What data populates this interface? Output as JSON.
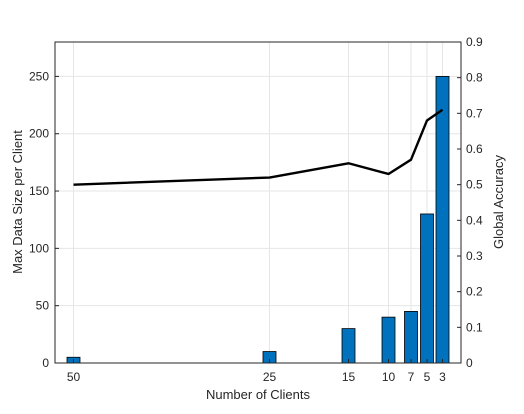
{
  "chart_data": {
    "type": "bar",
    "title": "",
    "xlabel": "Number of Clients",
    "ylabel_left": "Max Data Size per Client",
    "ylabel_right": "Global Accuracy",
    "x_tick_labels": [
      "50",
      "25",
      "15",
      "10",
      "7",
      "5",
      "3"
    ],
    "ylim_left": [
      0,
      280
    ],
    "yticks_left": [
      0,
      50,
      100,
      150,
      200,
      250
    ],
    "ylim_right": [
      0,
      0.9
    ],
    "yticks_right": [
      "0",
      "0.1",
      "0.2",
      "0.3",
      "0.4",
      "0.5",
      "0.6",
      "0.7",
      "0.8",
      "0.9"
    ],
    "grid": true,
    "series": [
      {
        "kind": "bar",
        "axis": "left",
        "color": "#0072bd",
        "points": [
          {
            "x": "50",
            "value": 5
          },
          {
            "x": "25",
            "value": 10
          },
          {
            "x": "15",
            "value": 30
          },
          {
            "x": "10",
            "value": 40
          },
          {
            "x": "7",
            "value": 45
          },
          {
            "x": "5",
            "value": 130
          },
          {
            "x": "3",
            "value": 250
          }
        ]
      },
      {
        "kind": "line",
        "axis": "right",
        "color": "#000000",
        "points": [
          {
            "x": "50",
            "value": 0.5
          },
          {
            "x": "25",
            "value": 0.52
          },
          {
            "x": "15",
            "value": 0.56
          },
          {
            "x": "10",
            "value": 0.53
          },
          {
            "x": "7",
            "value": 0.57
          },
          {
            "x": "5",
            "value": 0.68
          },
          {
            "x": "3",
            "value": 0.71
          }
        ]
      }
    ]
  }
}
